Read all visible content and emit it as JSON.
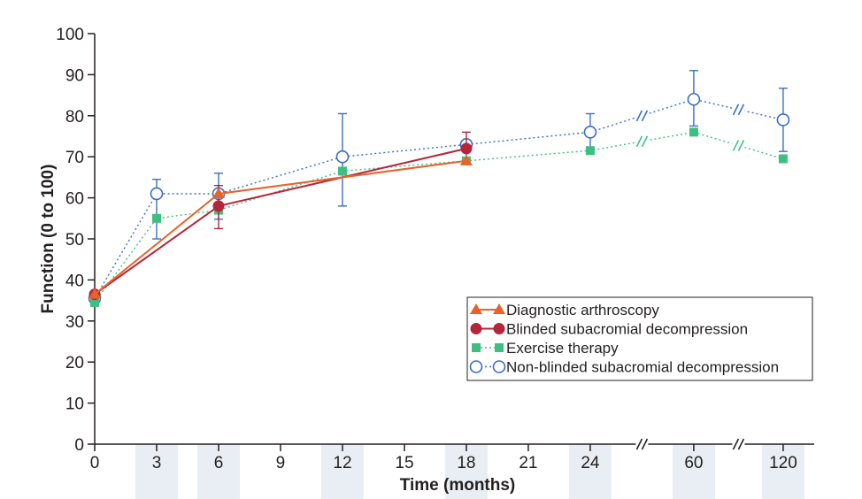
{
  "chart_data": {
    "type": "line",
    "xlabel": "Time (months)",
    "ylabel": "Function (0 to 100)",
    "ylim": [
      0,
      100
    ],
    "yticks": [
      0,
      10,
      20,
      30,
      40,
      50,
      60,
      70,
      80,
      90,
      100
    ],
    "xtick_labels": [
      "0",
      "3",
      "6",
      "9",
      "12",
      "15",
      "18",
      "21",
      "24",
      "60",
      "120"
    ],
    "shaded_ticks": [
      "3",
      "6",
      "12",
      "18",
      "24",
      "60",
      "120"
    ],
    "axis_breaks": [
      "between 24 and 60",
      "between 60 and 120"
    ],
    "grid": false,
    "legend_position": "bottom-right",
    "series": [
      {
        "name": "Diagnostic arthroscopy",
        "color": "#e8632b",
        "marker": "triangle",
        "line_style": "solid",
        "x": [
          0,
          6,
          18
        ],
        "y": [
          36.5,
          61,
          69
        ]
      },
      {
        "name": "Blinded subacromial decompression",
        "color": "#b5263a",
        "marker": "filled-circle",
        "line_style": "solid",
        "x": [
          0,
          6,
          18
        ],
        "y": [
          36.5,
          58,
          72
        ],
        "error_bars": [
          null,
          [
            52.5,
            63
          ],
          [
            68.3,
            76
          ]
        ]
      },
      {
        "name": "Exercise therapy",
        "color": "#3fbf7f",
        "marker": "filled-square",
        "line_style": "dotted",
        "x": [
          0,
          3,
          6,
          12,
          18,
          24,
          60,
          120
        ],
        "y": [
          34.5,
          55,
          57,
          66.5,
          69,
          71.5,
          76,
          69.5
        ]
      },
      {
        "name": "Non-blinded subacromial decompression",
        "color": "#3a6fc4",
        "marker": "open-circle",
        "line_style": "dotted",
        "x": [
          0,
          3,
          6,
          12,
          18,
          24,
          60,
          120
        ],
        "y": [
          35.5,
          61,
          61,
          70,
          73,
          76,
          84,
          79
        ],
        "error_bars": [
          null,
          [
            50,
            64.5
          ],
          [
            54.8,
            66
          ],
          [
            58,
            80.5
          ],
          null,
          [
            72,
            80.5
          ],
          [
            77.5,
            91
          ],
          [
            71.3,
            86.7
          ]
        ]
      }
    ]
  }
}
